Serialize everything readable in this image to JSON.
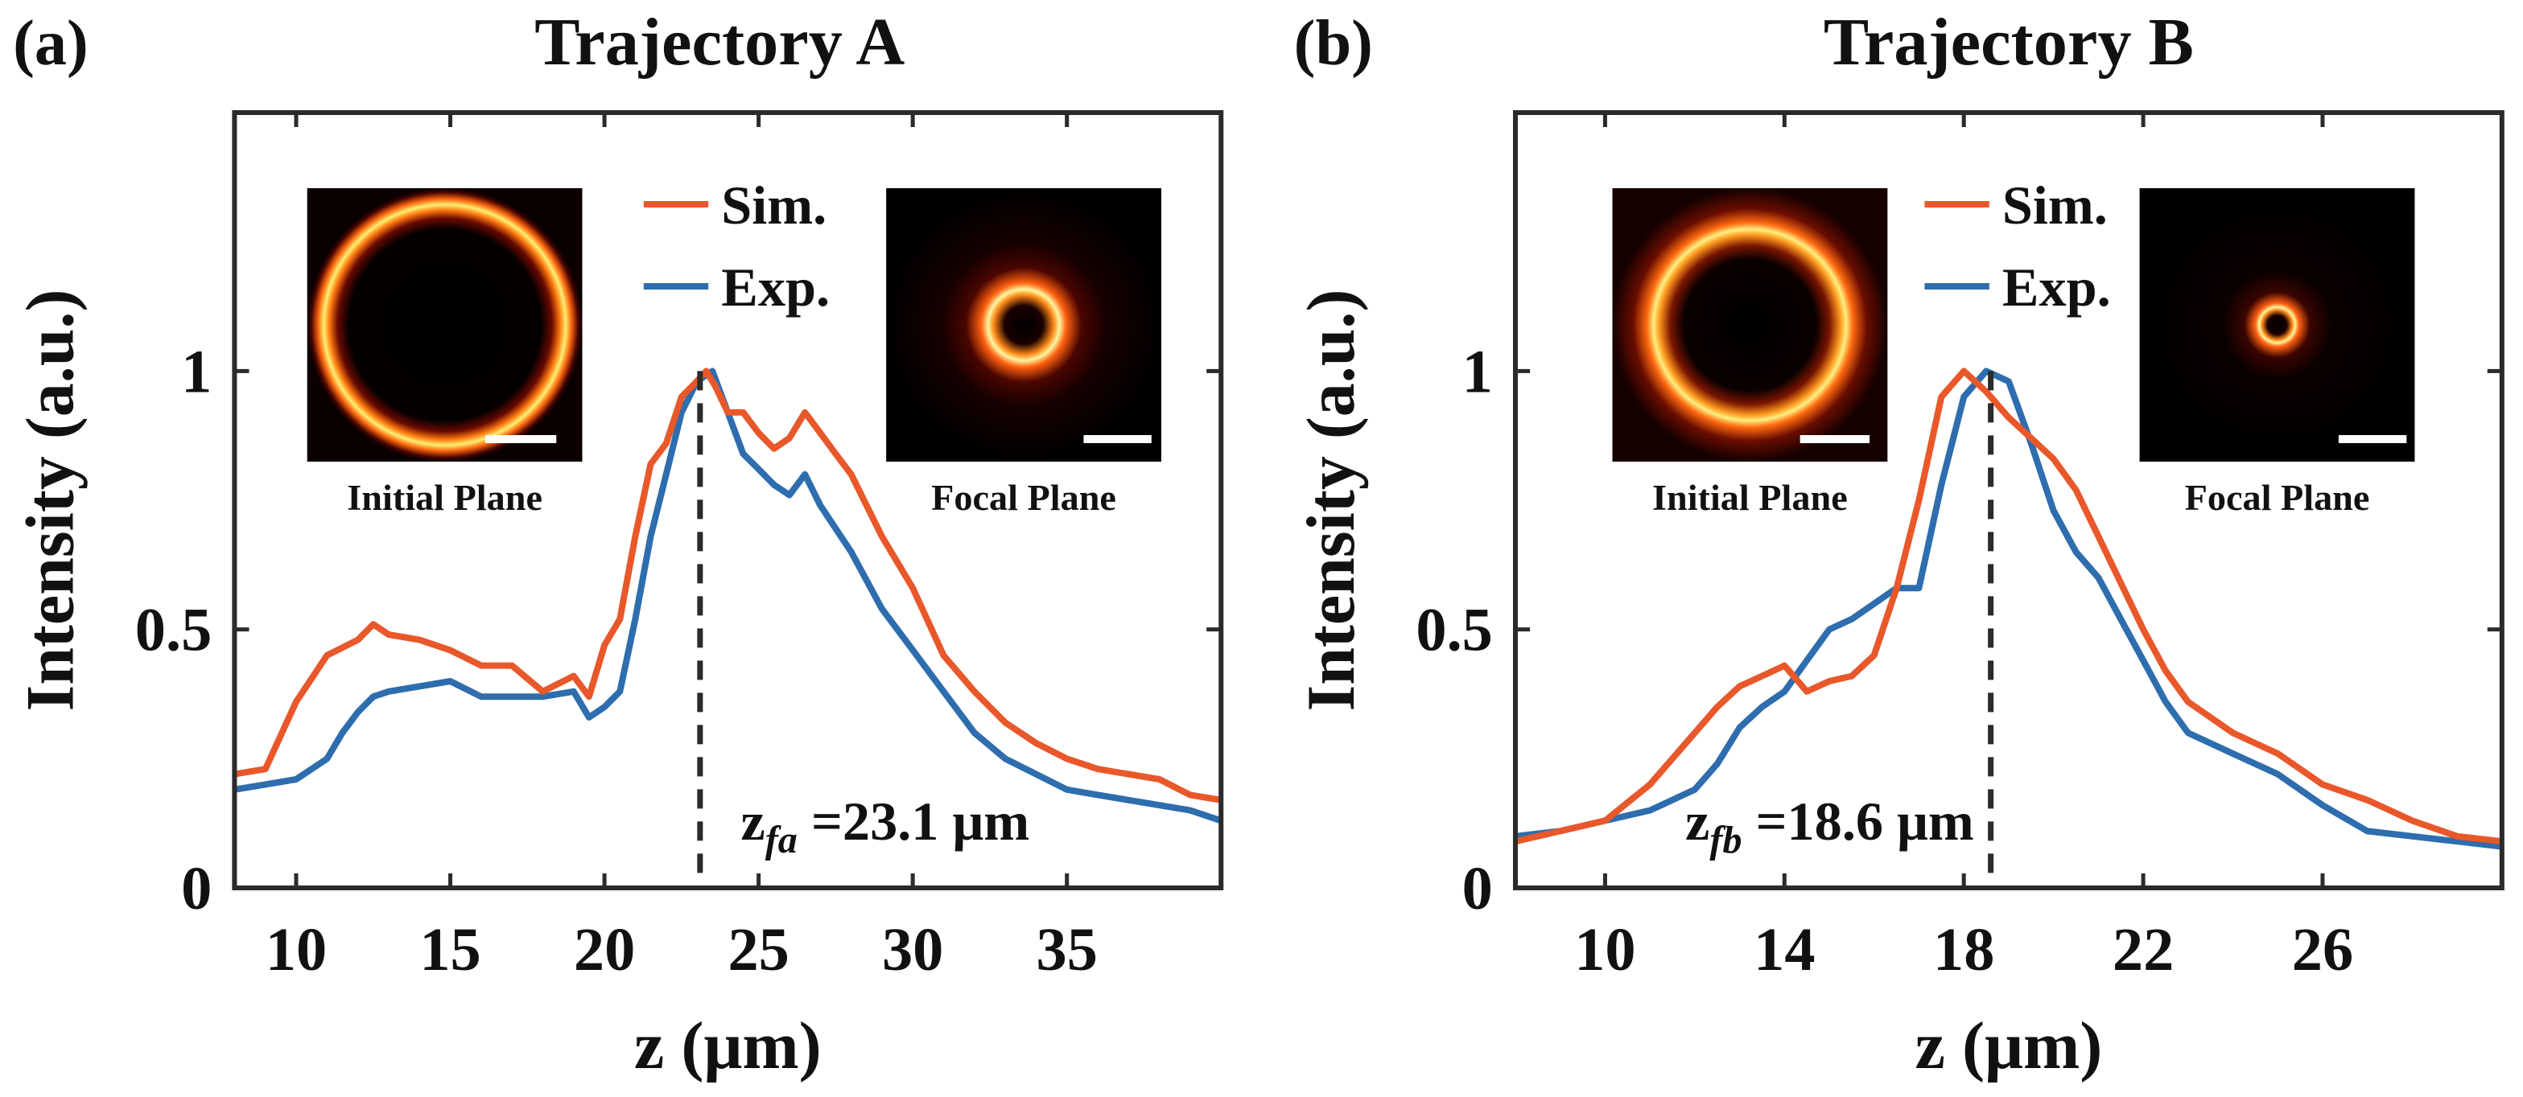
{
  "colors": {
    "sim": "#E8582A",
    "exp": "#2E6DAE",
    "axis": "#2b2b2b",
    "marker": "#2b2b2b"
  },
  "chart_data": [
    {
      "type": "line",
      "panel_label": "(a)",
      "title": "Trajectory A",
      "xlabel": "z (μm)",
      "ylabel": "Intensity (a.u.)",
      "xlim": [
        8,
        40
      ],
      "ylim": [
        0,
        1.5
      ],
      "xticks": [
        "10",
        "15",
        "20",
        "25",
        "30",
        "35"
      ],
      "xtick_values": [
        10,
        15,
        20,
        25,
        30,
        35
      ],
      "yticks": [
        "0",
        "0.5",
        "1"
      ],
      "ytick_values": [
        0,
        0.5,
        1
      ],
      "grid": false,
      "legend_position": "top-center",
      "focal_marker": {
        "x": 23.1,
        "label_main": "z",
        "label_sub": "fa",
        "label_value": " =23.1 μm"
      },
      "insets": [
        {
          "label": "Initial Plane",
          "kind": "large-ring",
          "icon": "ring-profile-image"
        },
        {
          "label": "Focal Plane",
          "kind": "small-ring",
          "icon": "ring-profile-image"
        }
      ],
      "series": [
        {
          "name": "Sim.",
          "color": "#E8582A",
          "x": [
            8,
            9,
            10,
            11,
            12,
            12.5,
            13,
            14,
            15,
            16,
            17,
            18,
            19,
            19.5,
            20,
            20.5,
            21,
            21.5,
            22,
            22.5,
            23,
            23.3,
            23.6,
            24,
            24.5,
            25,
            25.5,
            26,
            26.5,
            27,
            27.5,
            28,
            29,
            30,
            31,
            32,
            33,
            34,
            35,
            36,
            37,
            38,
            39,
            40
          ],
          "values": [
            0.22,
            0.23,
            0.36,
            0.45,
            0.48,
            0.51,
            0.49,
            0.48,
            0.46,
            0.43,
            0.43,
            0.38,
            0.41,
            0.37,
            0.47,
            0.52,
            0.68,
            0.82,
            0.86,
            0.95,
            0.98,
            1.0,
            0.97,
            0.92,
            0.92,
            0.88,
            0.85,
            0.87,
            0.92,
            0.88,
            0.84,
            0.8,
            0.68,
            0.58,
            0.45,
            0.38,
            0.32,
            0.28,
            0.25,
            0.23,
            0.22,
            0.21,
            0.18,
            0.17
          ]
        },
        {
          "name": "Exp.",
          "color": "#2E6DAE",
          "x": [
            8,
            9,
            10,
            11,
            11.5,
            12,
            12.5,
            13,
            14,
            15,
            16,
            17,
            18,
            19,
            19.5,
            20,
            20.5,
            21,
            21.5,
            22,
            22.5,
            23,
            23.5,
            24,
            24.5,
            25,
            25.5,
            26,
            26.5,
            27,
            28,
            29,
            30,
            31,
            32,
            33,
            34,
            35,
            36,
            37,
            38,
            39,
            40
          ],
          "values": [
            0.19,
            0.2,
            0.21,
            0.25,
            0.3,
            0.34,
            0.37,
            0.38,
            0.39,
            0.4,
            0.37,
            0.37,
            0.37,
            0.38,
            0.33,
            0.35,
            0.38,
            0.52,
            0.68,
            0.8,
            0.92,
            0.98,
            1.0,
            0.92,
            0.84,
            0.81,
            0.78,
            0.76,
            0.8,
            0.74,
            0.65,
            0.54,
            0.46,
            0.38,
            0.3,
            0.25,
            0.22,
            0.19,
            0.18,
            0.17,
            0.16,
            0.15,
            0.13
          ]
        }
      ]
    },
    {
      "type": "line",
      "panel_label": "(b)",
      "title": "Trajectory B",
      "xlabel": "z (μm)",
      "ylabel": "Intensity (a.u.)",
      "xlim": [
        8,
        30
      ],
      "ylim": [
        0,
        1.5
      ],
      "xticks": [
        "10",
        "14",
        "18",
        "22",
        "26"
      ],
      "xtick_values": [
        10,
        14,
        18,
        22,
        26
      ],
      "yticks": [
        "0",
        "0.5",
        "1"
      ],
      "ytick_values": [
        0,
        0.5,
        1
      ],
      "grid": false,
      "legend_position": "top-center",
      "focal_marker": {
        "x": 18.6,
        "label_main": "z",
        "label_sub": "fb",
        "label_value": " =18.6 μm"
      },
      "insets": [
        {
          "label": "Initial Plane",
          "kind": "large-ring",
          "icon": "ring-profile-image"
        },
        {
          "label": "Focal Plane",
          "kind": "small-ring",
          "icon": "ring-profile-image"
        }
      ],
      "series": [
        {
          "name": "Sim.",
          "color": "#E8582A",
          "x": [
            8,
            9,
            10,
            11,
            12,
            12.5,
            13,
            13.5,
            14,
            14.5,
            15,
            15.5,
            16,
            16.5,
            17,
            17.5,
            18,
            18.5,
            19,
            19.5,
            20,
            20.5,
            21,
            21.5,
            22,
            22.5,
            23,
            24,
            25,
            26,
            27,
            28,
            29,
            30
          ],
          "values": [
            0.09,
            0.11,
            0.13,
            0.2,
            0.3,
            0.35,
            0.39,
            0.41,
            0.43,
            0.38,
            0.4,
            0.41,
            0.45,
            0.58,
            0.75,
            0.95,
            1.0,
            0.96,
            0.91,
            0.87,
            0.83,
            0.77,
            0.68,
            0.59,
            0.5,
            0.42,
            0.36,
            0.3,
            0.26,
            0.2,
            0.17,
            0.13,
            0.1,
            0.09
          ]
        },
        {
          "name": "Exp.",
          "color": "#2E6DAE",
          "x": [
            8,
            9,
            10,
            11,
            12,
            12.5,
            13,
            13.5,
            14,
            14.5,
            15,
            15.5,
            16,
            16.5,
            17,
            17.5,
            18,
            18.5,
            19,
            19.5,
            20,
            20.5,
            21,
            21.5,
            22,
            22.5,
            23,
            24,
            25,
            26,
            27,
            28,
            29,
            30
          ],
          "values": [
            0.1,
            0.11,
            0.13,
            0.15,
            0.19,
            0.24,
            0.31,
            0.35,
            0.38,
            0.44,
            0.5,
            0.52,
            0.55,
            0.58,
            0.58,
            0.78,
            0.95,
            1.0,
            0.98,
            0.86,
            0.73,
            0.65,
            0.6,
            0.52,
            0.44,
            0.36,
            0.3,
            0.26,
            0.22,
            0.16,
            0.11,
            0.1,
            0.09,
            0.08
          ]
        }
      ]
    }
  ]
}
